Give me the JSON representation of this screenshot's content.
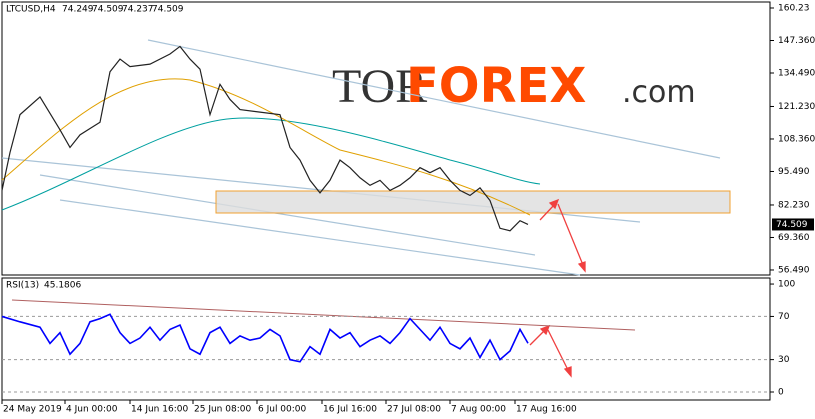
{
  "chart_data": [
    {
      "type": "line",
      "symbol": "LTCUSD,H4",
      "ohlc": [
        74.249,
        74.509,
        74.237,
        74.509
      ],
      "watermark": [
        "TOR",
        "FOREX",
        ".com"
      ],
      "last_price": 74.509,
      "series": [
        {
          "name": "LTCUSD",
          "color": "#222222",
          "x": [
            0,
            8,
            18,
            38,
            58,
            68,
            78,
            98,
            108,
            118,
            128,
            148,
            168,
            178,
            188,
            198,
            208,
            218,
            228,
            238,
            258,
            278,
            288,
            298,
            308,
            318,
            328,
            338,
            348,
            358,
            368,
            378,
            388,
            398,
            408,
            418,
            428,
            438,
            448,
            458,
            468,
            478,
            488,
            498,
            508,
            518,
            526
          ],
          "values": [
            88,
            103,
            118,
            125,
            112,
            105,
            110,
            115,
            135,
            140,
            137,
            138,
            142,
            145,
            140,
            136,
            118,
            130,
            124,
            120,
            119,
            118,
            105,
            100,
            92,
            87,
            92,
            100,
            97,
            93,
            90,
            92,
            88,
            90,
            93,
            97,
            95,
            97,
            92,
            88,
            86,
            89,
            84,
            73,
            72,
            76,
            74.509
          ]
        }
      ],
      "xlim": [
        0,
        768
      ],
      "ylim": [
        54.5,
        162.6
      ],
      "yticks": [
        {
          "value": 160.23,
          "label": "160.23"
        },
        {
          "value": 147.36,
          "label": "147.360"
        },
        {
          "value": 134.49,
          "label": "134.490"
        },
        {
          "value": 121.23,
          "label": "121.230"
        },
        {
          "value": 108.36,
          "label": "108.360"
        },
        {
          "value": 95.49,
          "label": "95.490"
        },
        {
          "value": 82.23,
          "label": "82.230"
        },
        {
          "value": 69.36,
          "label": "69.360"
        },
        {
          "value": 56.49,
          "label": "56.490"
        }
      ]
    },
    {
      "type": "line",
      "indicator": "RSI(13)",
      "last_value": 45.1806,
      "series": [
        {
          "name": "RSI",
          "color": "#0000ff",
          "x": [
            0,
            18,
            38,
            48,
            58,
            68,
            78,
            88,
            98,
            108,
            118,
            128,
            138,
            148,
            158,
            168,
            178,
            188,
            198,
            208,
            218,
            228,
            238,
            248,
            258,
            268,
            278,
            288,
            298,
            308,
            318,
            328,
            338,
            348,
            358,
            368,
            378,
            388,
            398,
            408,
            418,
            428,
            438,
            448,
            458,
            468,
            478,
            488,
            498,
            508,
            518,
            526
          ],
          "values": [
            70,
            65,
            60,
            45,
            55,
            35,
            45,
            65,
            68,
            72,
            55,
            45,
            50,
            60,
            48,
            58,
            62,
            40,
            35,
            55,
            60,
            45,
            52,
            48,
            50,
            58,
            52,
            30,
            28,
            42,
            35,
            58,
            50,
            55,
            42,
            48,
            52,
            45,
            55,
            68,
            58,
            48,
            60,
            45,
            40,
            50,
            32,
            48,
            30,
            38,
            58,
            45.1806
          ]
        }
      ],
      "xlim": [
        0,
        768
      ],
      "ylim": [
        -7.4,
        105.6
      ],
      "yticks": [
        100,
        70,
        30,
        0
      ],
      "xticks": [
        {
          "value": 0,
          "label": "24 May 2019"
        },
        {
          "value": 63,
          "label": "4 Jun 00:00"
        },
        {
          "value": 128,
          "label": "14 Jun 16:00"
        },
        {
          "value": 191,
          "label": "25 Jun 08:00"
        },
        {
          "value": 255,
          "label": "6 Jul 00:00"
        },
        {
          "value": 320,
          "label": "16 Jul 16:00"
        },
        {
          "value": 384,
          "label": "27 Jul 08:00"
        },
        {
          "value": 448,
          "label": "7 Aug 00:00"
        },
        {
          "value": 513,
          "label": "17 Aug 16:00"
        }
      ]
    }
  ]
}
